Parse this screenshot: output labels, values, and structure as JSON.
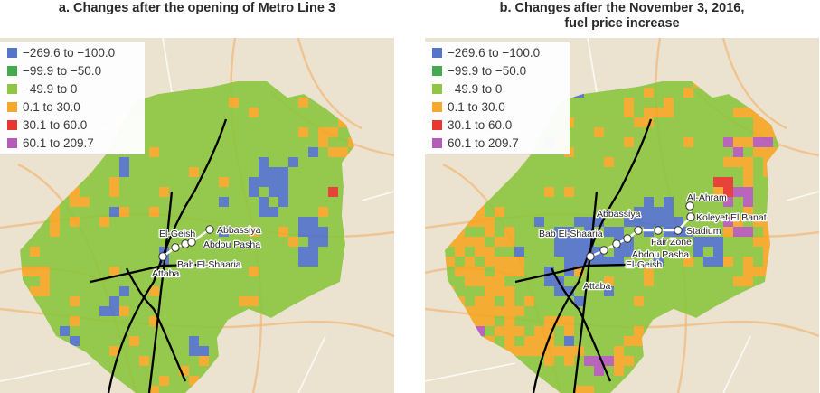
{
  "colors": {
    "blue": "#4f71c8",
    "dark_green": "#3da84a",
    "light_green": "#8cc63f",
    "orange": "#f6a623",
    "red": "#e8312a",
    "purple": "#b357b8",
    "rail": "#000000",
    "metro_line": "#ffffff"
  },
  "legend": [
    {
      "label": "−269.6 to −100.0",
      "color": "#4f71c8"
    },
    {
      "label": "−99.9 to −50.0",
      "color": "#3da84a"
    },
    {
      "label": "−49.9 to 0",
      "color": "#8cc63f"
    },
    {
      "label": "0.1 to 30.0",
      "color": "#f6a623"
    },
    {
      "label": "30.1 to 60.0",
      "color": "#e8312a"
    },
    {
      "label": "60.1 to 209.7",
      "color": "#b357b8"
    }
  ],
  "panels": [
    {
      "id": "a",
      "title_lines": [
        "a. Changes after the opening of Metro Line 3"
      ],
      "stations": [
        "Attaba",
        "Bab El-Shaaria",
        "El-Geish",
        "Abdou Pasha",
        "Abbassiya"
      ]
    },
    {
      "id": "b",
      "title_lines": [
        "b. Changes after the November 3, 2016,",
        "fuel price increase"
      ],
      "stations": [
        "Attaba",
        "Bab El-Shaaria",
        "El-Geish",
        "Abdou Pasha",
        "Abbassiya",
        "Fair Zone",
        "Stadium",
        "Koleyet El Banat",
        "Al-Ahram"
      ]
    }
  ]
}
